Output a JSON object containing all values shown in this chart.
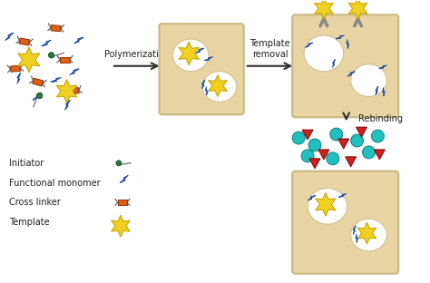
{
  "bg_color": "#ffffff",
  "polymer_bg": "#e8d5a3",
  "polymer_border": "#c8b882",
  "star_color": "#f0d020",
  "star_edge": "#c8a800",
  "blue_color": "#3060c0",
  "green_color": "#208040",
  "orange_color": "#e06010",
  "cyan_color": "#20c0c0",
  "red_color": "#cc2222",
  "grey_color": "#888888",
  "text_color": "#202020",
  "fs": 7,
  "polymerization_text": "Polymerization",
  "template_removal_text": "Template\nremoval",
  "rebinding_text": "Rebinding",
  "legend_labels": [
    "Initiator",
    "Functional monomer",
    "Cross linker",
    "Template"
  ]
}
